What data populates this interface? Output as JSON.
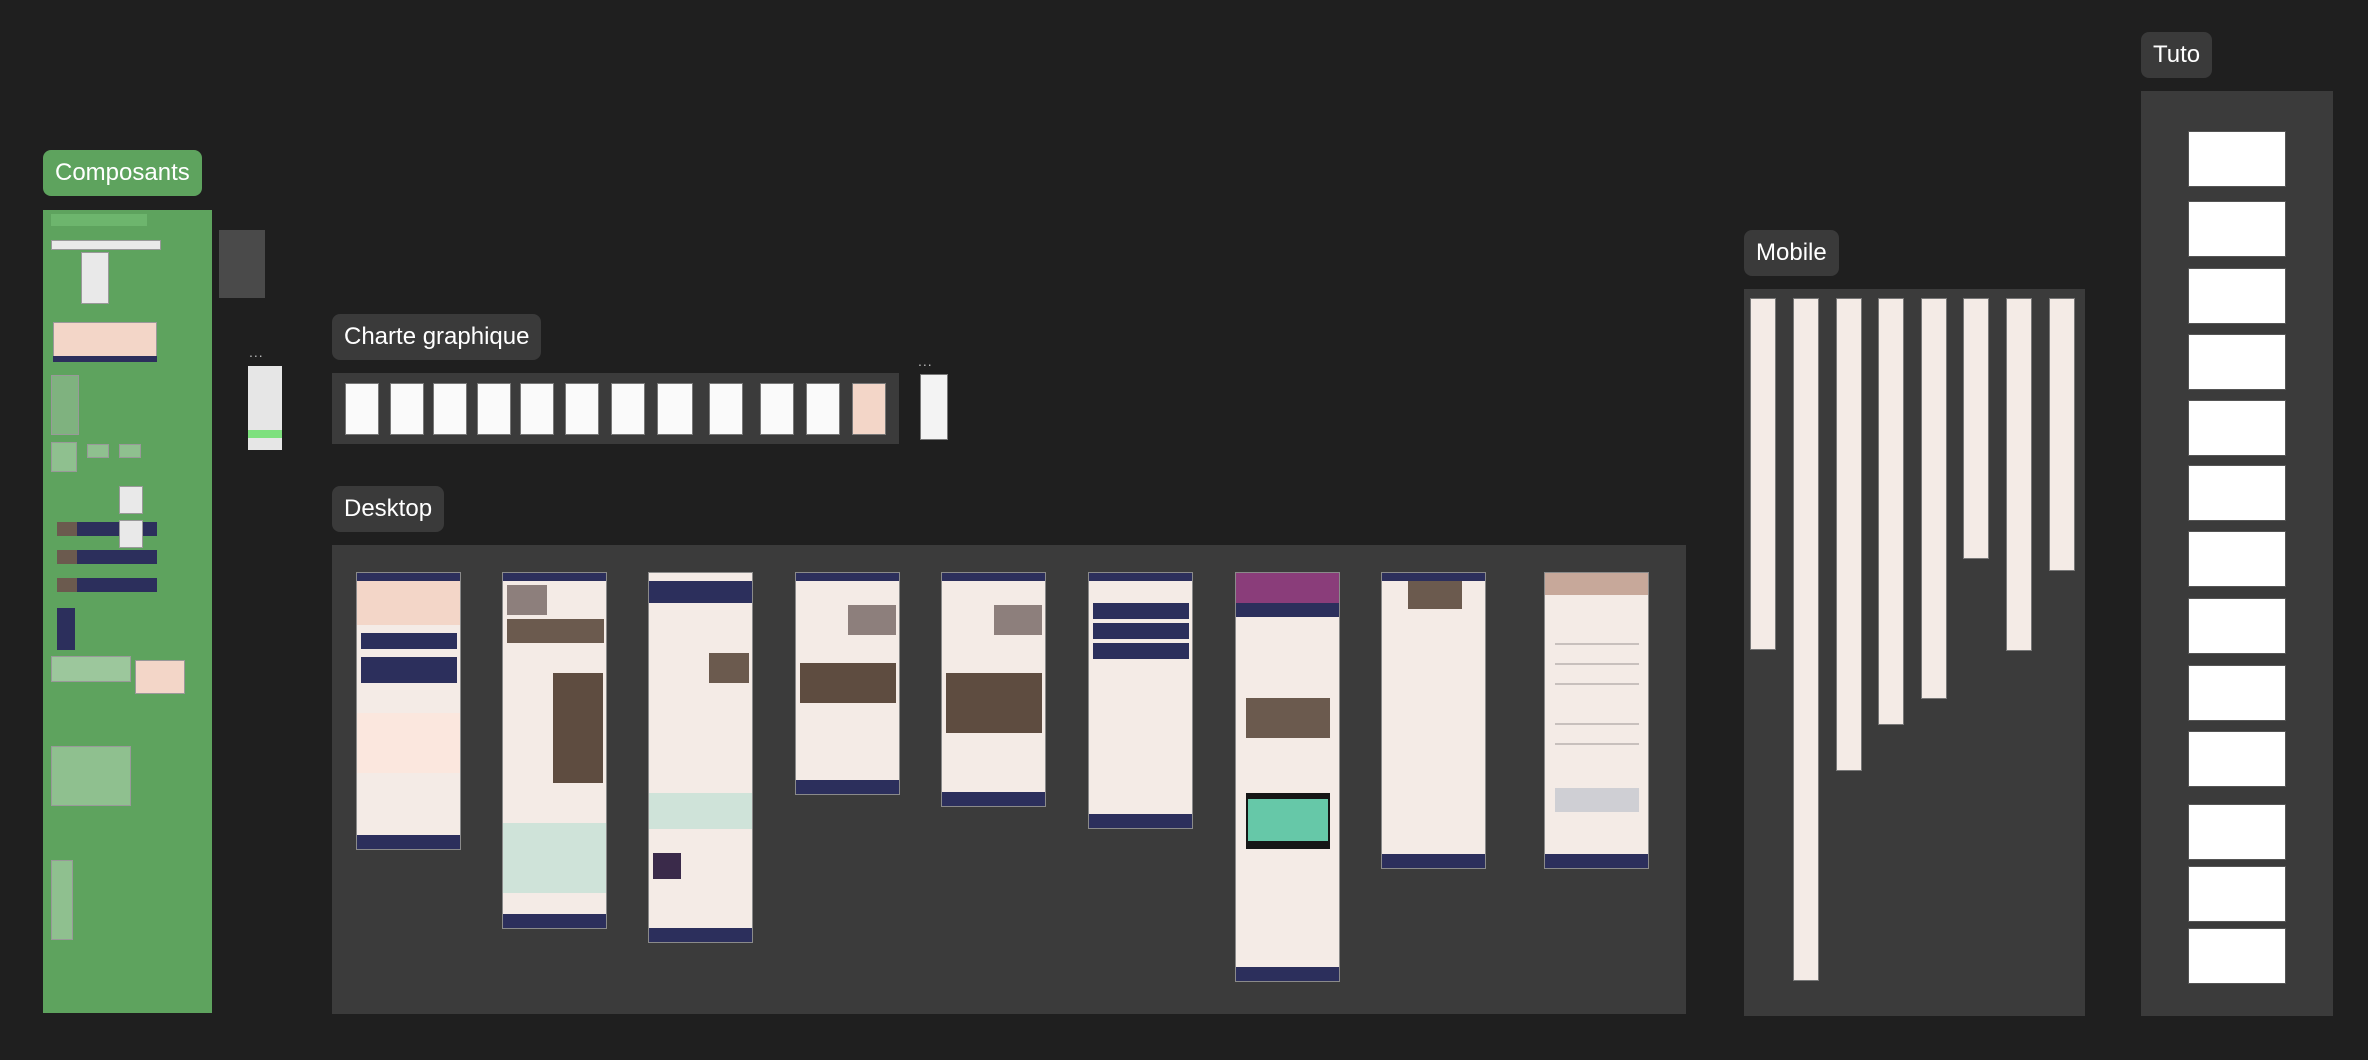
{
  "canvas": {
    "sections": {
      "composants": "Composants",
      "charte": "Charte graphique",
      "desktop": "Desktop",
      "mobile": "Mobile",
      "tuto": "Tuto"
    },
    "overflow_dots": "..."
  },
  "colors": {
    "canvas_bg": "#1f1f1f",
    "section_bg": "#3b3b3b",
    "composants_green": "#5ea35e",
    "brand_navy": "#2c2f5c",
    "brand_peach": "#f3d6c8",
    "accent_orange": "#e07a52"
  }
}
